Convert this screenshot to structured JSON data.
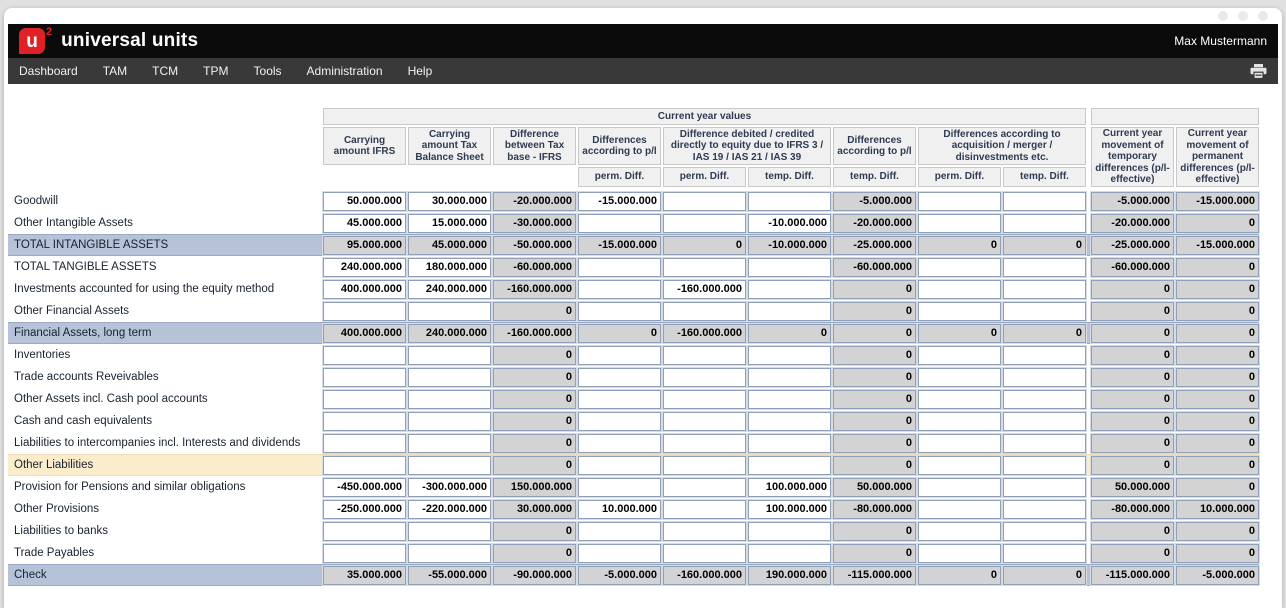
{
  "brand": {
    "logo_letter": "u",
    "logo_sup": "2",
    "title": "universal units"
  },
  "user": "Max Mustermann",
  "nav": {
    "items": [
      "Dashboard",
      "TAM",
      "TCM",
      "TPM",
      "Tools",
      "Administration",
      "Help"
    ],
    "print_icon": "print-icon"
  },
  "colors": {
    "brand_red": "#e02227",
    "header_bar": "#0b0b0b",
    "nav_bar": "#393939",
    "total_row_highlight": "#b5c2d8",
    "accent_row_highlight": "#fbeccb",
    "readonly_cell": "#d3d3d3",
    "header_cell": "#f0f0f0"
  },
  "table": {
    "top_group_header": "Current year values",
    "header_groups": [
      {
        "label": "Carrying amount IFRS",
        "cols": 1,
        "sub": []
      },
      {
        "label": "Carrying amount Tax Balance Sheet",
        "cols": 1,
        "sub": []
      },
      {
        "label": "Difference between Tax base - IFRS",
        "cols": 1,
        "sub": []
      },
      {
        "label": "Differences according to p/l",
        "cols": 1,
        "sub": [
          "perm. Diff."
        ]
      },
      {
        "label": "Difference debited / credited directly to equity due to IFRS 3 / IAS 19 / IAS 21 / IAS 39",
        "cols": 2,
        "sub": [
          "perm. Diff.",
          "temp. Diff."
        ]
      },
      {
        "label": "Differences according to p/l",
        "cols": 1,
        "sub": [
          "temp. Diff."
        ]
      },
      {
        "label": "Differences according to acquisition / merger / disinvestments etc.",
        "cols": 2,
        "sub": [
          "perm. Diff.",
          "temp. Diff."
        ]
      },
      {
        "label": "Current year movement of temporary differences (p/l-effective)",
        "cols": 1,
        "sub": [],
        "tall": true,
        "gap_before": true
      },
      {
        "label": "Current year movement of permanent differences (p/l-effective)",
        "cols": 1,
        "sub": [],
        "tall": true
      }
    ],
    "rows": [
      {
        "label": "Goodwill",
        "style": "normal",
        "cells": [
          [
            "50.000.000",
            0
          ],
          [
            "30.000.000",
            0
          ],
          [
            "-20.000.000",
            1
          ],
          [
            "-15.000.000",
            0
          ],
          [
            "",
            0
          ],
          [
            "",
            0
          ],
          [
            "-5.000.000",
            1
          ],
          [
            "",
            0
          ],
          [
            "",
            0
          ],
          [
            "-5.000.000",
            1
          ],
          [
            "-15.000.000",
            1
          ]
        ]
      },
      {
        "label": "Other Intangible Assets",
        "style": "normal",
        "cells": [
          [
            "45.000.000",
            0
          ],
          [
            "15.000.000",
            0
          ],
          [
            "-30.000.000",
            1
          ],
          [
            "",
            0
          ],
          [
            "",
            0
          ],
          [
            "-10.000.000",
            0
          ],
          [
            "-20.000.000",
            1
          ],
          [
            "",
            0
          ],
          [
            "",
            0
          ],
          [
            "-20.000.000",
            1
          ],
          [
            "0",
            1
          ]
        ]
      },
      {
        "label": "TOTAL INTANGIBLE ASSETS",
        "style": "total",
        "cells": [
          [
            "95.000.000",
            1
          ],
          [
            "45.000.000",
            1
          ],
          [
            "-50.000.000",
            1
          ],
          [
            "-15.000.000",
            1
          ],
          [
            "0",
            1
          ],
          [
            "-10.000.000",
            1
          ],
          [
            "-25.000.000",
            1
          ],
          [
            "0",
            1
          ],
          [
            "0",
            1
          ],
          [
            "-25.000.000",
            1
          ],
          [
            "-15.000.000",
            1
          ]
        ]
      },
      {
        "label": "TOTAL TANGIBLE ASSETS",
        "style": "normal",
        "cells": [
          [
            "240.000.000",
            0
          ],
          [
            "180.000.000",
            0
          ],
          [
            "-60.000.000",
            1
          ],
          [
            "",
            0
          ],
          [
            "",
            0
          ],
          [
            "",
            0
          ],
          [
            "-60.000.000",
            1
          ],
          [
            "",
            0
          ],
          [
            "",
            0
          ],
          [
            "-60.000.000",
            1
          ],
          [
            "0",
            1
          ]
        ]
      },
      {
        "label": "Investments accounted for using the equity method",
        "style": "normal",
        "cells": [
          [
            "400.000.000",
            0
          ],
          [
            "240.000.000",
            0
          ],
          [
            "-160.000.000",
            1
          ],
          [
            "",
            0
          ],
          [
            "-160.000.000",
            0
          ],
          [
            "",
            0
          ],
          [
            "0",
            1
          ],
          [
            "",
            0
          ],
          [
            "",
            0
          ],
          [
            "0",
            1
          ],
          [
            "0",
            1
          ]
        ]
      },
      {
        "label": "Other Financial Assets",
        "style": "normal",
        "cells": [
          [
            "",
            0
          ],
          [
            "",
            0
          ],
          [
            "0",
            1
          ],
          [
            "",
            0
          ],
          [
            "",
            0
          ],
          [
            "",
            0
          ],
          [
            "0",
            1
          ],
          [
            "",
            0
          ],
          [
            "",
            0
          ],
          [
            "0",
            1
          ],
          [
            "0",
            1
          ]
        ]
      },
      {
        "label": "Financial Assets, long term",
        "style": "total",
        "cells": [
          [
            "400.000.000",
            1
          ],
          [
            "240.000.000",
            1
          ],
          [
            "-160.000.000",
            1
          ],
          [
            "0",
            1
          ],
          [
            "-160.000.000",
            1
          ],
          [
            "0",
            1
          ],
          [
            "0",
            1
          ],
          [
            "0",
            1
          ],
          [
            "0",
            1
          ],
          [
            "0",
            1
          ],
          [
            "0",
            1
          ]
        ]
      },
      {
        "label": "Inventories",
        "style": "normal",
        "cells": [
          [
            "",
            0
          ],
          [
            "",
            0
          ],
          [
            "0",
            1
          ],
          [
            "",
            0
          ],
          [
            "",
            0
          ],
          [
            "",
            0
          ],
          [
            "0",
            1
          ],
          [
            "",
            0
          ],
          [
            "",
            0
          ],
          [
            "0",
            1
          ],
          [
            "0",
            1
          ]
        ]
      },
      {
        "label": "Trade accounts Reveivables",
        "style": "normal",
        "cells": [
          [
            "",
            0
          ],
          [
            "",
            0
          ],
          [
            "0",
            1
          ],
          [
            "",
            0
          ],
          [
            "",
            0
          ],
          [
            "",
            0
          ],
          [
            "0",
            1
          ],
          [
            "",
            0
          ],
          [
            "",
            0
          ],
          [
            "0",
            1
          ],
          [
            "0",
            1
          ]
        ]
      },
      {
        "label": "Other Assets incl. Cash pool accounts",
        "style": "normal",
        "cells": [
          [
            "",
            0
          ],
          [
            "",
            0
          ],
          [
            "0",
            1
          ],
          [
            "",
            0
          ],
          [
            "",
            0
          ],
          [
            "",
            0
          ],
          [
            "0",
            1
          ],
          [
            "",
            0
          ],
          [
            "",
            0
          ],
          [
            "0",
            1
          ],
          [
            "0",
            1
          ]
        ]
      },
      {
        "label": "Cash and cash equivalents",
        "style": "normal",
        "cells": [
          [
            "",
            0
          ],
          [
            "",
            0
          ],
          [
            "0",
            1
          ],
          [
            "",
            0
          ],
          [
            "",
            0
          ],
          [
            "",
            0
          ],
          [
            "0",
            1
          ],
          [
            "",
            0
          ],
          [
            "",
            0
          ],
          [
            "0",
            1
          ],
          [
            "0",
            1
          ]
        ]
      },
      {
        "label": "Liabilities to intercompanies incl. Interests and dividends",
        "style": "normal",
        "cells": [
          [
            "",
            0
          ],
          [
            "",
            0
          ],
          [
            "0",
            1
          ],
          [
            "",
            0
          ],
          [
            "",
            0
          ],
          [
            "",
            0
          ],
          [
            "0",
            1
          ],
          [
            "",
            0
          ],
          [
            "",
            0
          ],
          [
            "0",
            1
          ],
          [
            "0",
            1
          ]
        ]
      },
      {
        "label": "Other Liabilities",
        "style": "accent",
        "cells": [
          [
            "",
            0
          ],
          [
            "",
            0
          ],
          [
            "0",
            1
          ],
          [
            "",
            0
          ],
          [
            "",
            0
          ],
          [
            "",
            0
          ],
          [
            "0",
            1
          ],
          [
            "",
            0
          ],
          [
            "",
            0
          ],
          [
            "0",
            1
          ],
          [
            "0",
            1
          ]
        ]
      },
      {
        "label": "Provision for Pensions and similar obligations",
        "style": "normal",
        "cells": [
          [
            "-450.000.000",
            0
          ],
          [
            "-300.000.000",
            0
          ],
          [
            "150.000.000",
            1
          ],
          [
            "",
            0
          ],
          [
            "",
            0
          ],
          [
            "100.000.000",
            0
          ],
          [
            "50.000.000",
            1
          ],
          [
            "",
            0
          ],
          [
            "",
            0
          ],
          [
            "50.000.000",
            1
          ],
          [
            "0",
            1
          ]
        ]
      },
      {
        "label": "Other Provisions",
        "style": "normal",
        "cells": [
          [
            "-250.000.000",
            0
          ],
          [
            "-220.000.000",
            0
          ],
          [
            "30.000.000",
            1
          ],
          [
            "10.000.000",
            0
          ],
          [
            "",
            0
          ],
          [
            "100.000.000",
            0
          ],
          [
            "-80.000.000",
            1
          ],
          [
            "",
            0
          ],
          [
            "",
            0
          ],
          [
            "-80.000.000",
            1
          ],
          [
            "10.000.000",
            1
          ]
        ]
      },
      {
        "label": "Liabilities to banks",
        "style": "normal",
        "cells": [
          [
            "",
            0
          ],
          [
            "",
            0
          ],
          [
            "0",
            1
          ],
          [
            "",
            0
          ],
          [
            "",
            0
          ],
          [
            "",
            0
          ],
          [
            "0",
            1
          ],
          [
            "",
            0
          ],
          [
            "",
            0
          ],
          [
            "0",
            1
          ],
          [
            "0",
            1
          ]
        ]
      },
      {
        "label": "Trade Payables",
        "style": "normal",
        "cells": [
          [
            "",
            0
          ],
          [
            "",
            0
          ],
          [
            "0",
            1
          ],
          [
            "",
            0
          ],
          [
            "",
            0
          ],
          [
            "",
            0
          ],
          [
            "0",
            1
          ],
          [
            "",
            0
          ],
          [
            "",
            0
          ],
          [
            "0",
            1
          ],
          [
            "0",
            1
          ]
        ]
      },
      {
        "label": "Check",
        "style": "total",
        "cells": [
          [
            "35.000.000",
            1
          ],
          [
            "-55.000.000",
            1
          ],
          [
            "-90.000.000",
            1
          ],
          [
            "-5.000.000",
            1
          ],
          [
            "-160.000.000",
            1
          ],
          [
            "190.000.000",
            1
          ],
          [
            "-115.000.000",
            1
          ],
          [
            "0",
            1
          ],
          [
            "0",
            1
          ],
          [
            "-115.000.000",
            1
          ],
          [
            "-5.000.000",
            1
          ]
        ]
      }
    ]
  }
}
